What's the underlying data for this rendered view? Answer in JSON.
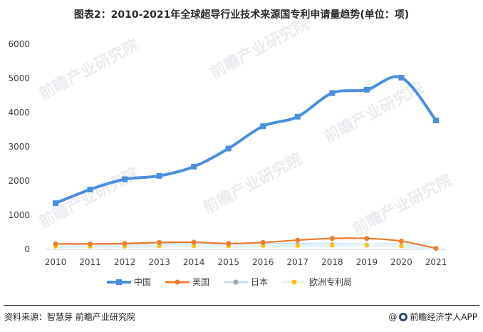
{
  "title": "图表2：2010-2021年全球超导行业技术来源国专利申请量趋势(单位：项)",
  "source": {
    "label": "资料来源：智慧芽 前瞻产业研究院",
    "brand": "前瞻经济学人APP",
    "brand_prefix": "@"
  },
  "watermark": {
    "text": "前瞻产业研究院"
  },
  "colors": {
    "china": "#4a8fdc",
    "usa": "#ed7d31",
    "japan": "#a5a5a5",
    "europe": "#ffc000",
    "japan_band": "#c6e3f6",
    "europe_band": "#e5f3fb"
  },
  "chart_data": {
    "type": "line",
    "x": [
      "2010",
      "2011",
      "2012",
      "2013",
      "2014",
      "2015",
      "2016",
      "2017",
      "2018",
      "2019",
      "2020",
      "2021"
    ],
    "yticks": [
      0,
      1000,
      2000,
      3000,
      4000,
      5000,
      6000
    ],
    "ylim": [
      0,
      6000
    ],
    "grid": false,
    "legend_position": "bottom",
    "series": [
      {
        "name": "中国",
        "key": "china",
        "marker": "square",
        "values": [
          1350,
          1750,
          2050,
          2150,
          2420,
          2950,
          3600,
          3880,
          4570,
          4670,
          5020,
          3770
        ]
      },
      {
        "name": "美国",
        "key": "usa",
        "marker": "circle",
        "values": [
          160,
          160,
          170,
          200,
          210,
          170,
          200,
          270,
          320,
          320,
          240,
          30
        ]
      },
      {
        "name": "日本",
        "key": "japan",
        "marker": "circle",
        "values": [
          130,
          130,
          130,
          140,
          140,
          140,
          140,
          140,
          140,
          130,
          120,
          20
        ]
      },
      {
        "name": "欧洲专利局",
        "key": "europe",
        "marker": "circle",
        "values": [
          90,
          90,
          90,
          100,
          100,
          100,
          110,
          110,
          120,
          120,
          100,
          20
        ]
      }
    ]
  }
}
